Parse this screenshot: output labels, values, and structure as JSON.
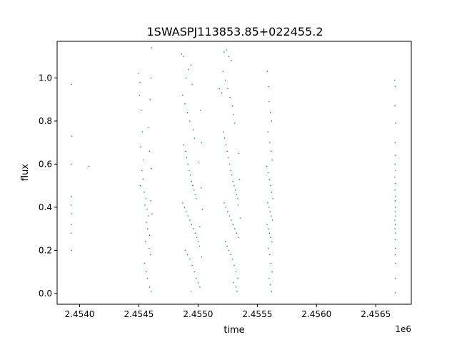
{
  "chart_data": {
    "type": "scatter",
    "title": "1SWASPJ113853.85+022455.2",
    "xlabel": "time",
    "ylabel": "flux",
    "x_offset_label": "1e6",
    "xlim": [
      2453810,
      2456800
    ],
    "ylim": [
      -0.05,
      1.17
    ],
    "x_ticks": [
      {
        "value": 2454000,
        "label": "2.4540"
      },
      {
        "value": 2454500,
        "label": "2.4545"
      },
      {
        "value": 2455000,
        "label": "2.4550"
      },
      {
        "value": 2455500,
        "label": "2.4555"
      },
      {
        "value": 2456000,
        "label": "2.4560"
      },
      {
        "value": 2456500,
        "label": "2.4565"
      }
    ],
    "y_ticks": [
      {
        "value": 0.0,
        "label": "0.0"
      },
      {
        "value": 0.2,
        "label": "0.2"
      },
      {
        "value": 0.4,
        "label": "0.4"
      },
      {
        "value": 0.6,
        "label": "0.6"
      },
      {
        "value": 0.8,
        "label": "0.8"
      },
      {
        "value": 1.0,
        "label": "1.0"
      }
    ],
    "marker_color": "#1f77b4",
    "grid": false,
    "series": [
      {
        "values": [
          [
            2453930,
            0.97
          ],
          [
            2453935,
            0.73
          ],
          [
            2453928,
            0.6
          ],
          [
            2453932,
            0.45
          ],
          [
            2453929,
            0.41
          ],
          [
            2453934,
            0.37
          ],
          [
            2453931,
            0.32
          ],
          [
            2453927,
            0.28
          ],
          [
            2453933,
            0.2
          ],
          [
            2454078,
            0.59
          ],
          [
            2454500,
            1.02
          ],
          [
            2454510,
            0.98
          ],
          [
            2454505,
            0.92
          ],
          [
            2454520,
            0.85
          ],
          [
            2454530,
            0.75
          ],
          [
            2454515,
            0.68
          ],
          [
            2454540,
            0.62
          ],
          [
            2454525,
            0.57
          ],
          [
            2454535,
            0.53
          ],
          [
            2454512,
            0.5
          ],
          [
            2454545,
            0.47
          ],
          [
            2454560,
            0.44
          ],
          [
            2454550,
            0.41
          ],
          [
            2454570,
            0.39
          ],
          [
            2454580,
            0.36
          ],
          [
            2454565,
            0.33
          ],
          [
            2454575,
            0.3
          ],
          [
            2454590,
            0.27
          ],
          [
            2454555,
            0.24
          ],
          [
            2454585,
            0.21
          ],
          [
            2454598,
            0.18
          ],
          [
            2454548,
            0.14
          ],
          [
            2454562,
            0.1
          ],
          [
            2454572,
            0.07
          ],
          [
            2454590,
            0.03
          ],
          [
            2454605,
            0.01
          ],
          [
            2454595,
            0.9
          ],
          [
            2454600,
            1.0
          ],
          [
            2454580,
            0.77
          ],
          [
            2454590,
            0.66
          ],
          [
            2454608,
            0.58
          ],
          [
            2454600,
            0.43
          ],
          [
            2454612,
            0.37
          ],
          [
            2454610,
            1.14
          ],
          [
            2454860,
            1.11
          ],
          [
            2454880,
            1.1
          ],
          [
            2454900,
            1.0
          ],
          [
            2454920,
            1.04
          ],
          [
            2454940,
            1.06
          ],
          [
            2454950,
            0.97
          ],
          [
            2454870,
            0.92
          ],
          [
            2454890,
            0.88
          ],
          [
            2454910,
            0.84
          ],
          [
            2454930,
            0.8
          ],
          [
            2454960,
            0.76
          ],
          [
            2454970,
            0.72
          ],
          [
            2454880,
            0.69
          ],
          [
            2454895,
            0.66
          ],
          [
            2454905,
            0.63
          ],
          [
            2454915,
            0.6
          ],
          [
            2454925,
            0.57
          ],
          [
            2454935,
            0.55
          ],
          [
            2454945,
            0.52
          ],
          [
            2454955,
            0.5
          ],
          [
            2454965,
            0.48
          ],
          [
            2454975,
            0.46
          ],
          [
            2454985,
            0.44
          ],
          [
            2454870,
            0.42
          ],
          [
            2454885,
            0.4
          ],
          [
            2454900,
            0.38
          ],
          [
            2454915,
            0.36
          ],
          [
            2454930,
            0.34
          ],
          [
            2454945,
            0.32
          ],
          [
            2454960,
            0.3
          ],
          [
            2454975,
            0.28
          ],
          [
            2454990,
            0.26
          ],
          [
            2455000,
            0.24
          ],
          [
            2455010,
            0.22
          ],
          [
            2454890,
            0.2
          ],
          [
            2454910,
            0.18
          ],
          [
            2454930,
            0.16
          ],
          [
            2454950,
            0.13
          ],
          [
            2454970,
            0.1
          ],
          [
            2454985,
            0.07
          ],
          [
            2455000,
            0.05
          ],
          [
            2455015,
            0.03
          ],
          [
            2454940,
            0.01
          ],
          [
            2455020,
            0.85
          ],
          [
            2455030,
            0.7
          ],
          [
            2455005,
            0.61
          ],
          [
            2455025,
            0.49
          ],
          [
            2455035,
            0.39
          ],
          [
            2455015,
            0.31
          ],
          [
            2455030,
            0.17
          ],
          [
            2455180,
            0.95
          ],
          [
            2455200,
            0.93
          ],
          [
            2455220,
            1.12
          ],
          [
            2455240,
            1.13
          ],
          [
            2455260,
            1.1
          ],
          [
            2455280,
            1.08
          ],
          [
            2455210,
            1.03
          ],
          [
            2455230,
            0.99
          ],
          [
            2455250,
            0.95
          ],
          [
            2455270,
            0.91
          ],
          [
            2455290,
            0.87
          ],
          [
            2455300,
            0.83
          ],
          [
            2455310,
            0.79
          ],
          [
            2455215,
            0.75
          ],
          [
            2455225,
            0.72
          ],
          [
            2455235,
            0.69
          ],
          [
            2455245,
            0.66
          ],
          [
            2455255,
            0.63
          ],
          [
            2455265,
            0.6
          ],
          [
            2455275,
            0.57
          ],
          [
            2455285,
            0.55
          ],
          [
            2455295,
            0.52
          ],
          [
            2455305,
            0.5
          ],
          [
            2455315,
            0.48
          ],
          [
            2455325,
            0.46
          ],
          [
            2455335,
            0.44
          ],
          [
            2455220,
            0.42
          ],
          [
            2455235,
            0.4
          ],
          [
            2455250,
            0.38
          ],
          [
            2455265,
            0.36
          ],
          [
            2455280,
            0.34
          ],
          [
            2455295,
            0.32
          ],
          [
            2455310,
            0.3
          ],
          [
            2455325,
            0.28
          ],
          [
            2455340,
            0.26
          ],
          [
            2455230,
            0.24
          ],
          [
            2455245,
            0.22
          ],
          [
            2455260,
            0.2
          ],
          [
            2455275,
            0.18
          ],
          [
            2455290,
            0.16
          ],
          [
            2455305,
            0.13
          ],
          [
            2455320,
            0.1
          ],
          [
            2455335,
            0.07
          ],
          [
            2455300,
            0.05
          ],
          [
            2455320,
            0.03
          ],
          [
            2455330,
            0.01
          ],
          [
            2455345,
            0.65
          ],
          [
            2455350,
            0.53
          ],
          [
            2455340,
            0.41
          ],
          [
            2455355,
            0.35
          ],
          [
            2455585,
            1.03
          ],
          [
            2455595,
            0.96
          ],
          [
            2455600,
            0.89
          ],
          [
            2455610,
            0.84
          ],
          [
            2455620,
            0.8
          ],
          [
            2455590,
            0.75
          ],
          [
            2455605,
            0.7
          ],
          [
            2455615,
            0.66
          ],
          [
            2455625,
            0.62
          ],
          [
            2455580,
            0.59
          ],
          [
            2455592,
            0.56
          ],
          [
            2455602,
            0.53
          ],
          [
            2455612,
            0.5
          ],
          [
            2455622,
            0.47
          ],
          [
            2455632,
            0.44
          ],
          [
            2455588,
            0.42
          ],
          [
            2455598,
            0.4
          ],
          [
            2455608,
            0.38
          ],
          [
            2455618,
            0.36
          ],
          [
            2455628,
            0.34
          ],
          [
            2455583,
            0.32
          ],
          [
            2455593,
            0.3
          ],
          [
            2455603,
            0.28
          ],
          [
            2455613,
            0.26
          ],
          [
            2455623,
            0.24
          ],
          [
            2455595,
            0.21
          ],
          [
            2455605,
            0.18
          ],
          [
            2455615,
            0.14
          ],
          [
            2455625,
            0.1
          ],
          [
            2455600,
            0.07
          ],
          [
            2455610,
            0.04
          ],
          [
            2455620,
            0.01
          ],
          [
            2456660,
            0.99
          ],
          [
            2456665,
            0.96
          ],
          [
            2456662,
            0.87
          ],
          [
            2456668,
            0.79
          ],
          [
            2456664,
            0.7
          ],
          [
            2456666,
            0.64
          ],
          [
            2456663,
            0.6
          ],
          [
            2456667,
            0.57
          ],
          [
            2456661,
            0.54
          ],
          [
            2456665,
            0.51
          ],
          [
            2456662,
            0.48
          ],
          [
            2456668,
            0.45
          ],
          [
            2456664,
            0.43
          ],
          [
            2456666,
            0.4
          ],
          [
            2456663,
            0.38
          ],
          [
            2456667,
            0.36
          ],
          [
            2456661,
            0.34
          ],
          [
            2456665,
            0.32
          ],
          [
            2456662,
            0.3
          ],
          [
            2456668,
            0.28
          ],
          [
            2456664,
            0.25
          ],
          [
            2456666,
            0.21
          ],
          [
            2456663,
            0.18
          ],
          [
            2456667,
            0.14
          ],
          [
            2456665,
            0.07
          ],
          [
            2456664,
            0.003
          ]
        ]
      }
    ]
  }
}
